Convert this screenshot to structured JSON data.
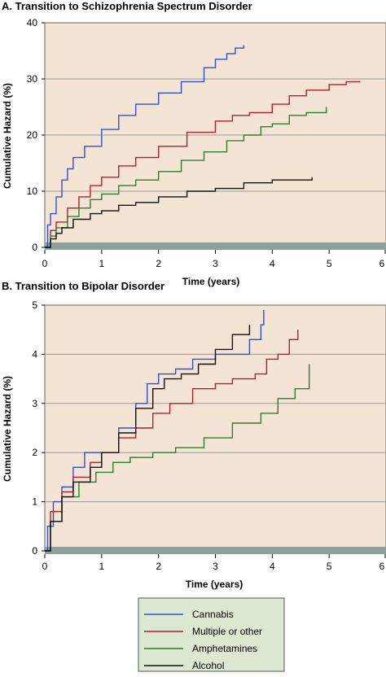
{
  "colors": {
    "plot_bg": "#f3e4d4",
    "gridline": "#9a9a9a",
    "axis_band": "#8f9e9a",
    "legend_bg": "#dde8d1",
    "cannabis": "#2f4fd6",
    "multiple": "#b3202a",
    "amphetamines": "#2e7d32",
    "alcohol": "#111111"
  },
  "legend": {
    "items": [
      {
        "label": "Cannabis",
        "color_key": "cannabis"
      },
      {
        "label": "Multiple or other",
        "color_key": "multiple"
      },
      {
        "label": "Amphetamines",
        "color_key": "amphetamines"
      },
      {
        "label": "Alcohol",
        "color_key": "alcohol"
      }
    ]
  },
  "chart_data": [
    {
      "type": "line",
      "title": "A. Transition to Schizophrenia Spectrum Disorder",
      "xlabel": "Time (years)",
      "ylabel": "Cumulative Hazard (%)",
      "xlim": [
        0,
        6
      ],
      "ylim": [
        0,
        40
      ],
      "xticks": [
        0,
        1,
        2,
        3,
        4,
        5,
        6
      ],
      "yticks": [
        0,
        10,
        20,
        30,
        40
      ],
      "grid": "horizontal",
      "series": [
        {
          "name": "Cannabis",
          "color_key": "cannabis",
          "x": [
            0,
            0.05,
            0.1,
            0.2,
            0.3,
            0.4,
            0.5,
            0.7,
            1.0,
            1.3,
            1.6,
            2.0,
            2.4,
            2.8,
            3.0,
            3.2,
            3.35,
            3.5
          ],
          "y": [
            0,
            4,
            6,
            9,
            12,
            14,
            16,
            18,
            21,
            23.5,
            25.5,
            27.5,
            29.5,
            32,
            33.5,
            34.5,
            35.5,
            36
          ]
        },
        {
          "name": "Multiple or other",
          "color_key": "multiple",
          "x": [
            0,
            0.1,
            0.2,
            0.4,
            0.6,
            0.8,
            1.0,
            1.3,
            1.6,
            2.0,
            2.5,
            3.0,
            3.3,
            3.6,
            4.0,
            4.3,
            4.6,
            5.0,
            5.3,
            5.55
          ],
          "y": [
            0,
            3,
            4.5,
            7,
            9,
            11,
            12.5,
            14.5,
            16,
            18,
            20.5,
            22.5,
            23.5,
            24,
            25.5,
            27,
            28,
            29,
            29.5,
            29.5
          ]
        },
        {
          "name": "Amphetamines",
          "color_key": "amphetamines",
          "x": [
            0,
            0.1,
            0.2,
            0.4,
            0.6,
            0.8,
            1.0,
            1.3,
            1.6,
            2.0,
            2.4,
            2.8,
            3.2,
            3.5,
            3.8,
            4.0,
            4.3,
            4.6,
            4.95
          ],
          "y": [
            0,
            2,
            3.5,
            5.5,
            7,
            8.5,
            9.5,
            11,
            12,
            13.5,
            15.5,
            17,
            19,
            20,
            21.5,
            22,
            23.5,
            24,
            25
          ]
        },
        {
          "name": "Alcohol",
          "color_key": "alcohol",
          "x": [
            0,
            0.1,
            0.2,
            0.3,
            0.5,
            0.8,
            1.0,
            1.3,
            1.6,
            2.0,
            2.5,
            3.0,
            3.5,
            4.0,
            4.5,
            4.7
          ],
          "y": [
            0,
            1.5,
            2.5,
            3.5,
            5,
            6,
            6.5,
            7.5,
            8,
            9,
            10,
            10.5,
            11.5,
            12,
            12,
            12.5
          ]
        }
      ]
    },
    {
      "type": "line",
      "title": "B. Transition to Bipolar Disorder",
      "xlabel": "Time (years)",
      "ylabel": "Cumulative Hazard (%)",
      "xlim": [
        0,
        6
      ],
      "ylim": [
        0,
        5
      ],
      "xticks": [
        0,
        1,
        2,
        3,
        4,
        5,
        6
      ],
      "yticks": [
        0,
        1,
        2,
        3,
        4,
        5
      ],
      "grid": "horizontal",
      "series": [
        {
          "name": "Cannabis",
          "color_key": "cannabis",
          "x": [
            0,
            0.05,
            0.15,
            0.3,
            0.5,
            0.7,
            1.0,
            1.3,
            1.6,
            1.8,
            2.0,
            2.3,
            2.6,
            3.0,
            3.3,
            3.6,
            3.8,
            3.85
          ],
          "y": [
            0,
            0.5,
            1.0,
            1.3,
            1.7,
            2.0,
            2.0,
            2.5,
            3.0,
            3.4,
            3.6,
            3.7,
            3.9,
            4.0,
            4.0,
            4.3,
            4.6,
            4.9
          ]
        },
        {
          "name": "Multiple or other",
          "color_key": "multiple",
          "x": [
            0,
            0.1,
            0.3,
            0.5,
            0.8,
            1.0,
            1.3,
            1.6,
            1.9,
            2.2,
            2.6,
            3.0,
            3.3,
            3.7,
            3.9,
            4.1,
            4.3,
            4.45
          ],
          "y": [
            0,
            0.8,
            1.2,
            1.5,
            1.8,
            2.0,
            2.3,
            2.5,
            2.8,
            3.0,
            3.3,
            3.4,
            3.5,
            3.6,
            3.9,
            4.0,
            4.3,
            4.5
          ]
        },
        {
          "name": "Amphetamines",
          "color_key": "amphetamines",
          "x": [
            0,
            0.1,
            0.3,
            0.6,
            0.9,
            1.2,
            1.5,
            1.9,
            2.3,
            2.8,
            3.3,
            3.8,
            4.1,
            4.4,
            4.65
          ],
          "y": [
            0,
            0.6,
            1.1,
            1.4,
            1.6,
            1.8,
            1.9,
            2.0,
            2.1,
            2.3,
            2.6,
            2.8,
            3.1,
            3.3,
            3.8
          ]
        },
        {
          "name": "Alcohol",
          "color_key": "alcohol",
          "x": [
            0,
            0.1,
            0.3,
            0.5,
            0.8,
            1.0,
            1.3,
            1.6,
            1.9,
            2.1,
            2.4,
            2.7,
            3.0,
            3.3,
            3.6
          ],
          "y": [
            0,
            0.6,
            1.1,
            1.4,
            1.7,
            2.0,
            2.4,
            2.9,
            3.3,
            3.5,
            3.6,
            3.8,
            4.1,
            4.4,
            4.6
          ]
        }
      ]
    }
  ]
}
